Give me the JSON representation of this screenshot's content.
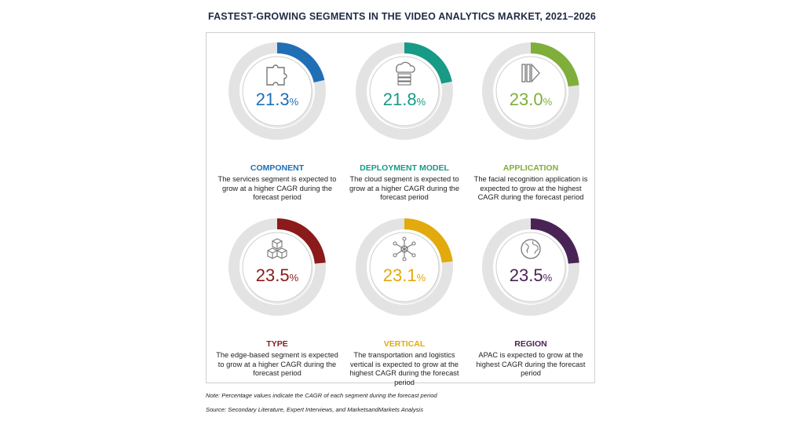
{
  "title": "FASTEST-GROWING SEGMENTS IN THE VIDEO ANALYTICS MARKET, 2021–2026",
  "note": "Note: Percentage values indicate the CAGR of each segment during the forecast period",
  "source": "Source: Secondary Literature, Expert Interviews, and MarketsandMarkets Analysis",
  "chart_data": {
    "type": "donut",
    "unit": "%",
    "items": [
      {
        "label": "COMPONENT",
        "value": 21.3,
        "value_text": "21.3",
        "color": "#1f6fb5",
        "icon": "puzzle-icon",
        "description": "The services segment is expected to grow at a higher CAGR during the forecast period"
      },
      {
        "label": "DEPLOYMENT MODEL",
        "value": 21.8,
        "value_text": "21.8",
        "color": "#179a86",
        "icon": "cloud-server-icon",
        "description": "The cloud segment is expected to grow at a higher CAGR during the forecast period"
      },
      {
        "label": "APPLICATION",
        "value": 23.0,
        "value_text": "23.0",
        "color": "#7fae3a",
        "icon": "facial-scan-icon",
        "description": "The facial recognition application is expected to grow at the highest CAGR during the forecast period"
      },
      {
        "label": "TYPE",
        "value": 23.5,
        "value_text": "23.5",
        "color": "#8b1a1a",
        "icon": "cubes-icon",
        "description": "The edge-based segment is expected to grow at a higher CAGR during the forecast period"
      },
      {
        "label": "VERTICAL",
        "value": 23.1,
        "value_text": "23.1",
        "color": "#e3aa0d",
        "icon": "network-hub-icon",
        "description": "The transportation and logistics vertical is expected to grow at the highest CAGR during the forecast period"
      },
      {
        "label": "REGION",
        "value": 23.5,
        "value_text": "23.5",
        "color": "#4a2356",
        "icon": "globe-icon",
        "description": "APAC is expected to grow at the highest CAGR during the forecast period"
      }
    ]
  }
}
